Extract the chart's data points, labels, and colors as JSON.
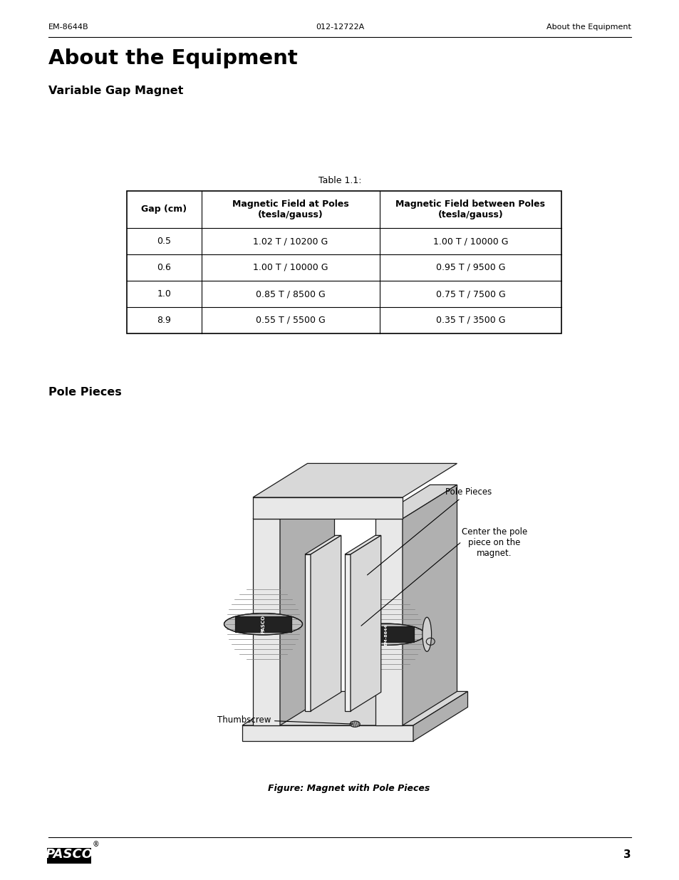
{
  "header_left": "EM-8644B",
  "header_center": "012-12722A",
  "header_right": "About the Equipment",
  "page_title": "About the Equipment",
  "section1_title": "Variable Gap Magnet",
  "table_title": "Table 1.1:",
  "table_headers": [
    "Gap (cm)",
    "Magnetic Field at Poles\n(tesla/gauss)",
    "Magnetic Field between Poles\n(tesla/gauss)"
  ],
  "table_data": [
    [
      "0.5",
      "1.02 T / 10200 G",
      "1.00 T / 10000 G"
    ],
    [
      "0.6",
      "1.00 T / 10000 G",
      "0.95 T / 9500 G"
    ],
    [
      "1.0",
      "0.85 T / 8500 G",
      "0.75 T / 7500 G"
    ],
    [
      "8.9",
      "0.55 T / 5500 G",
      "0.35 T / 3500 G"
    ]
  ],
  "section2_title": "Pole Pieces",
  "fig_caption": "Figure: Magnet with Pole Pieces",
  "ann_pole_pieces": "Pole Pieces",
  "ann_center": "Center the pole\npiece on the\nmagnet.",
  "ann_thumbscrew": "Thumbscrew",
  "footer_page": "3",
  "bg_color": "#ffffff"
}
